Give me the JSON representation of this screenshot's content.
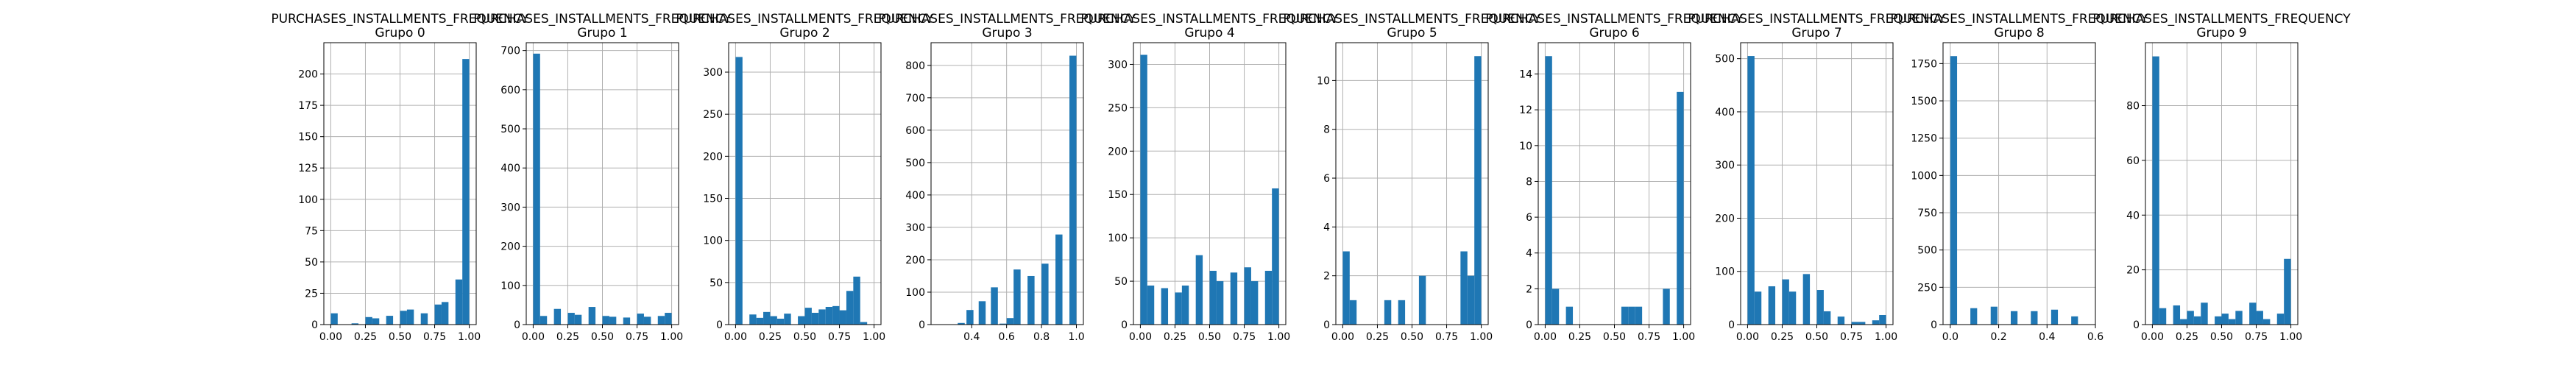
{
  "chart_data": [
    {
      "type": "bar",
      "title": "PURCHASES_INSTALLMENTS_FREQUENCY",
      "subtitle": "Grupo 0",
      "xlim": [
        -0.05,
        1.05
      ],
      "ylim": [
        0,
        225
      ],
      "xticks": [
        0.0,
        0.25,
        0.5,
        0.75,
        1.0
      ],
      "xtick_labels": [
        "0.00",
        "0.25",
        "0.50",
        "0.75",
        "1.00"
      ],
      "yticks": [
        0,
        25,
        50,
        75,
        100,
        125,
        150,
        175,
        200
      ],
      "ytick_labels": [
        "0",
        "25",
        "50",
        "75",
        "100",
        "125",
        "150",
        "175",
        "200"
      ],
      "bin_width": 0.05,
      "bins": [
        [
          0.0,
          9
        ],
        [
          0.15,
          1
        ],
        [
          0.25,
          6
        ],
        [
          0.3,
          5
        ],
        [
          0.4,
          7
        ],
        [
          0.5,
          11
        ],
        [
          0.55,
          12
        ],
        [
          0.65,
          9
        ],
        [
          0.75,
          16
        ],
        [
          0.8,
          18
        ],
        [
          0.9,
          36
        ],
        [
          0.95,
          212
        ]
      ],
      "grid": true
    },
    {
      "type": "bar",
      "title": "PURCHASES_INSTALLMENTS_FREQUENCY",
      "subtitle": "Grupo 1",
      "xlim": [
        -0.05,
        1.05
      ],
      "ylim": [
        0,
        720
      ],
      "xticks": [
        0.0,
        0.25,
        0.5,
        0.75,
        1.0
      ],
      "xtick_labels": [
        "0.00",
        "0.25",
        "0.50",
        "0.75",
        "1.00"
      ],
      "yticks": [
        0,
        100,
        200,
        300,
        400,
        500,
        600,
        700
      ],
      "ytick_labels": [
        "0",
        "100",
        "200",
        "300",
        "400",
        "500",
        "600",
        "700"
      ],
      "bin_width": 0.05,
      "bins": [
        [
          0.0,
          692
        ],
        [
          0.05,
          22
        ],
        [
          0.15,
          40
        ],
        [
          0.25,
          30
        ],
        [
          0.3,
          25
        ],
        [
          0.4,
          45
        ],
        [
          0.5,
          22
        ],
        [
          0.55,
          20
        ],
        [
          0.65,
          18
        ],
        [
          0.75,
          28
        ],
        [
          0.8,
          20
        ],
        [
          0.9,
          22
        ],
        [
          0.95,
          30
        ]
      ],
      "grid": true
    },
    {
      "type": "bar",
      "title": "PURCHASES_INSTALLMENTS_FREQUENCY",
      "subtitle": "Grupo 2",
      "xlim": [
        -0.05,
        1.05
      ],
      "ylim": [
        0,
        335
      ],
      "xticks": [
        0.0,
        0.25,
        0.5,
        0.75,
        1.0
      ],
      "xtick_labels": [
        "0.00",
        "0.25",
        "0.50",
        "0.75",
        "1.00"
      ],
      "yticks": [
        0,
        50,
        100,
        150,
        200,
        250,
        300
      ],
      "ytick_labels": [
        "0",
        "50",
        "100",
        "150",
        "200",
        "250",
        "300"
      ],
      "bin_width": 0.05,
      "bins": [
        [
          0.0,
          318
        ],
        [
          0.1,
          12
        ],
        [
          0.15,
          8
        ],
        [
          0.2,
          15
        ],
        [
          0.25,
          10
        ],
        [
          0.3,
          7
        ],
        [
          0.35,
          13
        ],
        [
          0.45,
          10
        ],
        [
          0.5,
          20
        ],
        [
          0.55,
          14
        ],
        [
          0.6,
          18
        ],
        [
          0.65,
          21
        ],
        [
          0.7,
          22
        ],
        [
          0.75,
          17
        ],
        [
          0.8,
          40
        ],
        [
          0.85,
          57
        ],
        [
          0.9,
          3
        ]
      ],
      "grid": true
    },
    {
      "type": "bar",
      "title": "PURCHASES_INSTALLMENTS_FREQUENCY",
      "subtitle": "Grupo 3",
      "xlim": [
        0.167,
        1.04
      ],
      "ylim": [
        0,
        870
      ],
      "xticks": [
        0.4,
        0.6,
        0.8,
        1.0
      ],
      "xtick_labels": [
        "0.4",
        "0.6",
        "0.8",
        "1.0"
      ],
      "yticks": [
        0,
        100,
        200,
        300,
        400,
        500,
        600,
        700,
        800
      ],
      "ytick_labels": [
        "0",
        "100",
        "200",
        "300",
        "400",
        "500",
        "600",
        "700",
        "800"
      ],
      "bin_width": 0.04,
      "bins": [
        [
          0.32,
          5
        ],
        [
          0.37,
          45
        ],
        [
          0.44,
          72
        ],
        [
          0.51,
          115
        ],
        [
          0.56,
          3
        ],
        [
          0.6,
          20
        ],
        [
          0.64,
          170
        ],
        [
          0.72,
          150
        ],
        [
          0.8,
          188
        ],
        [
          0.88,
          278
        ],
        [
          0.96,
          830
        ]
      ],
      "grid": true
    },
    {
      "type": "bar",
      "title": "PURCHASES_INSTALLMENTS_FREQUENCY",
      "subtitle": "Grupo 4",
      "xlim": [
        -0.05,
        1.05
      ],
      "ylim": [
        0,
        325
      ],
      "xticks": [
        0.0,
        0.25,
        0.5,
        0.75,
        1.0
      ],
      "xtick_labels": [
        "0.00",
        "0.25",
        "0.50",
        "0.75",
        "1.00"
      ],
      "yticks": [
        0,
        50,
        100,
        150,
        200,
        250,
        300
      ],
      "ytick_labels": [
        "0",
        "50",
        "100",
        "150",
        "200",
        "250",
        "300"
      ],
      "bin_width": 0.05,
      "bins": [
        [
          0.0,
          311
        ],
        [
          0.05,
          45
        ],
        [
          0.15,
          42
        ],
        [
          0.25,
          37
        ],
        [
          0.3,
          45
        ],
        [
          0.4,
          80
        ],
        [
          0.5,
          62
        ],
        [
          0.55,
          50
        ],
        [
          0.65,
          60
        ],
        [
          0.75,
          66
        ],
        [
          0.8,
          50
        ],
        [
          0.9,
          62
        ],
        [
          0.95,
          157
        ]
      ],
      "grid": true
    },
    {
      "type": "bar",
      "title": "PURCHASES_INSTALLMENTS_FREQUENCY",
      "subtitle": "Grupo 5",
      "xlim": [
        -0.05,
        1.05
      ],
      "ylim": [
        0,
        11.55
      ],
      "xticks": [
        0.0,
        0.25,
        0.5,
        0.75,
        1.0
      ],
      "xtick_labels": [
        "0.00",
        "0.25",
        "0.50",
        "0.75",
        "1.00"
      ],
      "yticks": [
        0,
        2,
        4,
        6,
        8,
        10
      ],
      "ytick_labels": [
        "0",
        "2",
        "4",
        "6",
        "8",
        "10"
      ],
      "bin_width": 0.05,
      "bins": [
        [
          0.0,
          3
        ],
        [
          0.05,
          1
        ],
        [
          0.3,
          1
        ],
        [
          0.4,
          1
        ],
        [
          0.55,
          2
        ],
        [
          0.85,
          3
        ],
        [
          0.9,
          2
        ],
        [
          0.95,
          11
        ]
      ],
      "grid": true
    },
    {
      "type": "bar",
      "title": "PURCHASES_INSTALLMENTS_FREQUENCY",
      "subtitle": "Grupo 6",
      "xlim": [
        -0.05,
        1.05
      ],
      "ylim": [
        0,
        15.75
      ],
      "xticks": [
        0.0,
        0.25,
        0.5,
        0.75,
        1.0
      ],
      "xtick_labels": [
        "0.00",
        "0.25",
        "0.50",
        "0.75",
        "1.00"
      ],
      "yticks": [
        0,
        2,
        4,
        6,
        8,
        10,
        12,
        14
      ],
      "ytick_labels": [
        "0",
        "2",
        "4",
        "6",
        "8",
        "10",
        "12",
        "14"
      ],
      "bin_width": 0.05,
      "bins": [
        [
          0.0,
          15
        ],
        [
          0.05,
          2
        ],
        [
          0.15,
          1
        ],
        [
          0.55,
          1
        ],
        [
          0.6,
          1
        ],
        [
          0.65,
          1
        ],
        [
          0.85,
          2
        ],
        [
          0.95,
          13
        ]
      ],
      "grid": true
    },
    {
      "type": "bar",
      "title": "PURCHASES_INSTALLMENTS_FREQUENCY",
      "subtitle": "Grupo 7",
      "xlim": [
        -0.05,
        1.05
      ],
      "ylim": [
        0,
        530
      ],
      "xticks": [
        0.0,
        0.25,
        0.5,
        0.75,
        1.0
      ],
      "xtick_labels": [
        "0.00",
        "0.25",
        "0.50",
        "0.75",
        "1.00"
      ],
      "yticks": [
        0,
        100,
        200,
        300,
        400,
        500
      ],
      "ytick_labels": [
        "0",
        "100",
        "200",
        "300",
        "400",
        "500"
      ],
      "bin_width": 0.05,
      "bins": [
        [
          0.0,
          505
        ],
        [
          0.05,
          62
        ],
        [
          0.15,
          72
        ],
        [
          0.25,
          85
        ],
        [
          0.3,
          62
        ],
        [
          0.4,
          95
        ],
        [
          0.5,
          65
        ],
        [
          0.55,
          25
        ],
        [
          0.65,
          15
        ],
        [
          0.75,
          5
        ],
        [
          0.8,
          5
        ],
        [
          0.9,
          8
        ],
        [
          0.95,
          18
        ]
      ],
      "grid": true
    },
    {
      "type": "bar",
      "title": "PURCHASES_INSTALLMENTS_FREQUENCY",
      "subtitle": "Grupo 8",
      "xlim": [
        -0.03,
        0.6
      ],
      "ylim": [
        0,
        1890
      ],
      "xticks": [
        0.0,
        0.2,
        0.4,
        0.6
      ],
      "xtick_labels": [
        "0.0",
        "0.2",
        "0.4",
        "0.6"
      ],
      "yticks": [
        0,
        250,
        500,
        750,
        1000,
        1250,
        1500,
        1750
      ],
      "ytick_labels": [
        "0",
        "250",
        "500",
        "750",
        "1000",
        "1250",
        "1500",
        "1750"
      ],
      "bin_width": 0.028,
      "bins": [
        [
          0.0,
          1800
        ],
        [
          0.083,
          110
        ],
        [
          0.167,
          120
        ],
        [
          0.25,
          90
        ],
        [
          0.333,
          90
        ],
        [
          0.417,
          100
        ],
        [
          0.5,
          55
        ]
      ],
      "grid": true
    },
    {
      "type": "bar",
      "title": "PURCHASES_INSTALLMENTS_FREQUENCY",
      "subtitle": "Grupo 9",
      "xlim": [
        -0.05,
        1.05
      ],
      "ylim": [
        0,
        103
      ],
      "xticks": [
        0.0,
        0.25,
        0.5,
        0.75,
        1.0
      ],
      "xtick_labels": [
        "0.00",
        "0.25",
        "0.50",
        "0.75",
        "1.00"
      ],
      "yticks": [
        0,
        20,
        40,
        60,
        80
      ],
      "ytick_labels": [
        "0",
        "20",
        "40",
        "60",
        "80"
      ],
      "bin_width": 0.05,
      "bins": [
        [
          0.0,
          98
        ],
        [
          0.05,
          6
        ],
        [
          0.15,
          7
        ],
        [
          0.2,
          2
        ],
        [
          0.25,
          5
        ],
        [
          0.3,
          3
        ],
        [
          0.35,
          8
        ],
        [
          0.45,
          3
        ],
        [
          0.5,
          4
        ],
        [
          0.55,
          2
        ],
        [
          0.6,
          5
        ],
        [
          0.7,
          8
        ],
        [
          0.75,
          5
        ],
        [
          0.8,
          2
        ],
        [
          0.9,
          4
        ],
        [
          0.95,
          24
        ]
      ],
      "grid": true
    }
  ]
}
